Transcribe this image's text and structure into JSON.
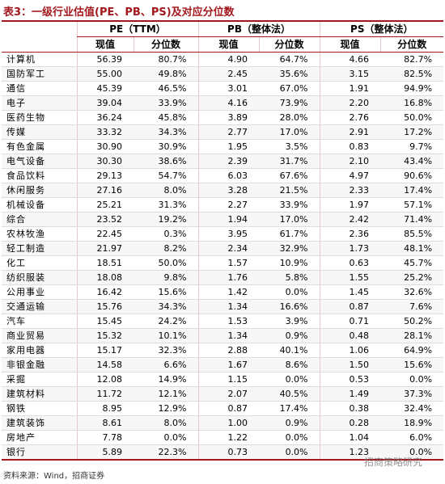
{
  "title": "表3：一级行业估值(PE、PB、PS)及对应分位数",
  "header": {
    "groups": [
      "PE（TTM）",
      "PB（整体法）",
      "PS（整体法）"
    ],
    "subheaders": [
      "现值",
      "分位数",
      "现值",
      "分位数",
      "现值",
      "分位数"
    ]
  },
  "table": {
    "rows": [
      [
        "计算机",
        "56.39",
        "80.7%",
        "4.90",
        "64.7%",
        "4.66",
        "82.7%"
      ],
      [
        "国防军工",
        "55.00",
        "49.8%",
        "2.45",
        "35.6%",
        "3.15",
        "82.5%"
      ],
      [
        "通信",
        "45.39",
        "46.5%",
        "3.01",
        "67.0%",
        "1.91",
        "94.9%"
      ],
      [
        "电子",
        "39.04",
        "33.9%",
        "4.16",
        "73.9%",
        "2.20",
        "16.8%"
      ],
      [
        "医药生物",
        "36.24",
        "45.8%",
        "3.89",
        "28.0%",
        "2.76",
        "50.0%"
      ],
      [
        "传媒",
        "33.32",
        "34.3%",
        "2.77",
        "17.0%",
        "2.91",
        "17.2%"
      ],
      [
        "有色金属",
        "30.90",
        "30.9%",
        "1.95",
        "3.5%",
        "0.83",
        "9.7%"
      ],
      [
        "电气设备",
        "30.30",
        "38.6%",
        "2.39",
        "31.7%",
        "2.10",
        "43.4%"
      ],
      [
        "食品饮料",
        "29.13",
        "54.7%",
        "6.03",
        "67.6%",
        "4.97",
        "90.6%"
      ],
      [
        "休闲服务",
        "27.16",
        "8.0%",
        "3.28",
        "21.5%",
        "2.33",
        "17.4%"
      ],
      [
        "机械设备",
        "25.21",
        "31.3%",
        "2.27",
        "33.9%",
        "1.97",
        "57.1%"
      ],
      [
        "综合",
        "23.52",
        "19.2%",
        "1.94",
        "17.0%",
        "2.42",
        "71.4%"
      ],
      [
        "农林牧渔",
        "22.45",
        "0.3%",
        "3.95",
        "61.7%",
        "2.36",
        "85.5%"
      ],
      [
        "轻工制造",
        "21.97",
        "8.2%",
        "2.34",
        "32.9%",
        "1.73",
        "48.1%"
      ],
      [
        "化工",
        "18.51",
        "50.0%",
        "1.57",
        "10.9%",
        "0.63",
        "45.7%"
      ],
      [
        "纺织服装",
        "18.08",
        "9.8%",
        "1.76",
        "5.8%",
        "1.55",
        "25.2%"
      ],
      [
        "公用事业",
        "16.42",
        "15.6%",
        "1.42",
        "0.0%",
        "1.45",
        "32.6%"
      ],
      [
        "交通运输",
        "15.76",
        "34.3%",
        "1.34",
        "16.6%",
        "0.87",
        "7.6%"
      ],
      [
        "汽车",
        "15.45",
        "24.2%",
        "1.53",
        "3.9%",
        "0.71",
        "50.2%"
      ],
      [
        "商业贸易",
        "15.32",
        "10.1%",
        "1.34",
        "0.9%",
        "0.48",
        "28.1%"
      ],
      [
        "家用电器",
        "15.17",
        "32.3%",
        "2.88",
        "40.1%",
        "1.06",
        "64.9%"
      ],
      [
        "非银金融",
        "14.58",
        "6.6%",
        "1.67",
        "8.6%",
        "1.50",
        "15.6%"
      ],
      [
        "采掘",
        "12.08",
        "14.9%",
        "1.15",
        "0.0%",
        "0.53",
        "0.0%"
      ],
      [
        "建筑材料",
        "11.72",
        "12.1%",
        "2.07",
        "40.5%",
        "1.49",
        "37.3%"
      ],
      [
        "钢铁",
        "8.95",
        "12.9%",
        "0.87",
        "17.4%",
        "0.38",
        "32.4%"
      ],
      [
        "建筑装饰",
        "8.61",
        "8.0%",
        "1.00",
        "0.9%",
        "0.28",
        "18.9%"
      ],
      [
        "房地产",
        "7.78",
        "0.0%",
        "1.22",
        "0.0%",
        "1.04",
        "6.0%"
      ],
      [
        "银行",
        "5.89",
        "22.3%",
        "0.73",
        "0.0%",
        "1.23",
        "0.0%"
      ]
    ]
  },
  "source": "资料来源：Wind，招商证券",
  "watermark": "招商策略研究"
}
